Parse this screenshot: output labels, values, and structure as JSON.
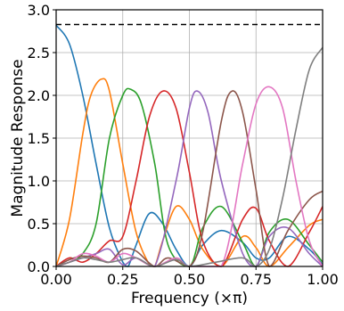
{
  "chart_data": {
    "type": "line",
    "title": "",
    "xlabel": "Frequency (×π)",
    "ylabel": "Magnitude Response",
    "xlim": [
      0,
      1
    ],
    "ylim": [
      0,
      3
    ],
    "grid": true,
    "x_ticks": [
      "0.00",
      "0.25",
      "0.50",
      "0.75",
      "1.00"
    ],
    "y_ticks": [
      "0.0",
      "0.5",
      "1.0",
      "1.5",
      "2.0",
      "2.5",
      "3.0"
    ],
    "reference_line": {
      "y": 2.828,
      "style": "dashed",
      "color": "#000000"
    },
    "series": [
      {
        "color": "#1f77b4",
        "x": [
          0,
          0.05,
          0.1,
          0.15,
          0.2,
          0.25,
          0.27,
          0.3,
          0.35,
          0.4,
          0.45,
          0.5,
          0.55,
          0.62,
          0.7,
          0.75,
          0.8,
          0.87,
          0.95,
          1.0
        ],
        "y": [
          2.82,
          2.6,
          2.0,
          1.2,
          0.45,
          0.05,
          0.0,
          0.25,
          0.62,
          0.5,
          0.2,
          0.0,
          0.25,
          0.42,
          0.28,
          0.1,
          0.1,
          0.35,
          0.2,
          0.02
        ]
      },
      {
        "color": "#ff7f0e",
        "x": [
          0,
          0.05,
          0.1,
          0.13,
          0.17,
          0.2,
          0.25,
          0.3,
          0.35,
          0.37,
          0.4,
          0.45,
          0.5,
          0.55,
          0.62,
          0.7,
          0.75,
          0.8,
          0.87,
          0.95,
          1.0
        ],
        "y": [
          0.0,
          0.55,
          1.55,
          2.0,
          2.19,
          2.05,
          1.2,
          0.4,
          0.02,
          0.0,
          0.3,
          0.7,
          0.55,
          0.2,
          0.0,
          0.35,
          0.22,
          0.0,
          0.22,
          0.48,
          0.55
        ]
      },
      {
        "color": "#2ca02c",
        "x": [
          0,
          0.05,
          0.1,
          0.15,
          0.2,
          0.25,
          0.28,
          0.32,
          0.37,
          0.42,
          0.5,
          0.55,
          0.62,
          0.7,
          0.75,
          0.8,
          0.87,
          0.95,
          1.0
        ],
        "y": [
          0.0,
          0.05,
          0.15,
          0.5,
          1.5,
          2.0,
          2.07,
          1.9,
          1.2,
          0.25,
          0.0,
          0.45,
          0.7,
          0.28,
          0.0,
          0.4,
          0.55,
          0.25,
          0.05
        ]
      },
      {
        "color": "#d62728",
        "x": [
          0,
          0.05,
          0.1,
          0.15,
          0.2,
          0.25,
          0.3,
          0.35,
          0.4,
          0.45,
          0.5,
          0.55,
          0.62,
          0.7,
          0.75,
          0.8,
          0.87,
          0.95,
          1.0
        ],
        "y": [
          0.0,
          0.1,
          0.05,
          0.15,
          0.3,
          0.35,
          1.0,
          1.75,
          2.05,
          1.85,
          1.1,
          0.3,
          0.0,
          0.55,
          0.68,
          0.3,
          0.0,
          0.4,
          0.7
        ]
      },
      {
        "color": "#9467bd",
        "x": [
          0,
          0.05,
          0.1,
          0.15,
          0.2,
          0.25,
          0.3,
          0.37,
          0.45,
          0.5,
          0.53,
          0.57,
          0.62,
          0.7,
          0.75,
          0.8,
          0.87,
          0.95,
          1.0
        ],
        "y": [
          0.0,
          0.05,
          0.1,
          0.15,
          0.2,
          0.02,
          0.1,
          0.0,
          1.0,
          1.85,
          2.05,
          1.8,
          1.0,
          0.15,
          0.0,
          0.35,
          0.45,
          0.15,
          0.0
        ]
      },
      {
        "color": "#8c564b",
        "x": [
          0,
          0.05,
          0.1,
          0.15,
          0.2,
          0.25,
          0.3,
          0.37,
          0.42,
          0.5,
          0.55,
          0.62,
          0.66,
          0.7,
          0.75,
          0.8,
          0.87,
          0.95,
          1.0
        ],
        "y": [
          0.0,
          0.08,
          0.12,
          0.1,
          0.05,
          0.2,
          0.18,
          0.0,
          0.1,
          0.0,
          0.4,
          1.7,
          2.05,
          1.8,
          0.9,
          0.0,
          0.42,
          0.78,
          0.88
        ]
      },
      {
        "color": "#e377c2",
        "x": [
          0,
          0.05,
          0.1,
          0.15,
          0.2,
          0.25,
          0.3,
          0.37,
          0.45,
          0.5,
          0.62,
          0.7,
          0.75,
          0.8,
          0.85,
          0.9,
          0.95,
          1.0
        ],
        "y": [
          0.0,
          0.05,
          0.15,
          0.12,
          0.05,
          0.15,
          0.1,
          0.0,
          0.1,
          0.0,
          0.0,
          1.2,
          1.9,
          2.1,
          1.85,
          1.0,
          0.3,
          0.0
        ]
      },
      {
        "color": "#7f7f7f",
        "x": [
          0,
          0.05,
          0.1,
          0.15,
          0.2,
          0.25,
          0.3,
          0.37,
          0.45,
          0.5,
          0.6,
          0.7,
          0.75,
          0.8,
          0.85,
          0.9,
          0.95,
          1.0
        ],
        "y": [
          0.0,
          0.05,
          0.1,
          0.08,
          0.05,
          0.08,
          0.1,
          0.0,
          0.08,
          0.0,
          0.05,
          0.1,
          0.0,
          0.2,
          0.8,
          1.6,
          2.3,
          2.56
        ]
      }
    ]
  }
}
